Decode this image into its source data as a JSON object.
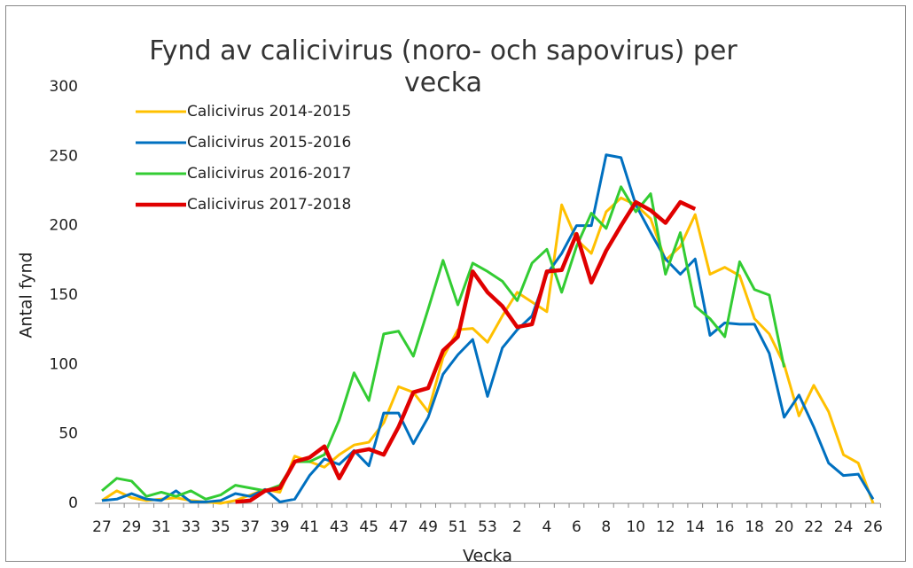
{
  "chart_data": {
    "type": "line",
    "title": "Fynd av calicivirus (noro- och sapovirus) per vecka",
    "x_label": "Vecka",
    "y_label": "Antal fynd",
    "categories": [
      "27",
      null,
      "29",
      null,
      "31",
      null,
      "33",
      null,
      "35",
      null,
      "37",
      null,
      "39",
      null,
      "41",
      null,
      "43",
      null,
      "45",
      null,
      "47",
      null,
      "49",
      null,
      "51",
      null,
      "53",
      null,
      "2",
      null,
      "4",
      null,
      "6",
      null,
      "8",
      null,
      "10",
      null,
      "12",
      null,
      "14",
      null,
      "16",
      null,
      "18",
      null,
      "20",
      null,
      "22",
      null,
      "24",
      null,
      "26"
    ],
    "ylim": [
      0,
      300
    ],
    "yticks": [
      0,
      50,
      100,
      150,
      200,
      250,
      300
    ],
    "legend": "upper left",
    "series": [
      {
        "name": "Calicivirus 2014-2015",
        "color": "#FFC000",
        "values": [
          2,
          9,
          4,
          2,
          3,
          4,
          2,
          1,
          0,
          2,
          6,
          10,
          8,
          34,
          30,
          26,
          35,
          42,
          44,
          58,
          84,
          80,
          66,
          105,
          125,
          126,
          116,
          135,
          152,
          145,
          138,
          215,
          190,
          180,
          210,
          220,
          215,
          205,
          175,
          185,
          208,
          165,
          170,
          164,
          133,
          122,
          100,
          63,
          85,
          66,
          35,
          29,
          0
        ]
      },
      {
        "name": "Calicivirus 2015-2016",
        "color": "#0070C0",
        "values": [
          2,
          3,
          7,
          3,
          2,
          9,
          1,
          1,
          2,
          7,
          5,
          10,
          1,
          3,
          20,
          32,
          28,
          38,
          27,
          65,
          65,
          43,
          62,
          93,
          107,
          118,
          77,
          112,
          125,
          135,
          165,
          180,
          200,
          200,
          251,
          249,
          215,
          195,
          176,
          165,
          176,
          121,
          130,
          129,
          129,
          108,
          62,
          78,
          55,
          29,
          20,
          21,
          3
        ]
      },
      {
        "name": "Calicivirus 2016-2017",
        "color": "#33CC33",
        "values": [
          9,
          18,
          16,
          5,
          8,
          5,
          9,
          3,
          6,
          13,
          11,
          9,
          13,
          30,
          30,
          35,
          60,
          94,
          74,
          122,
          124,
          106,
          140,
          175,
          143,
          173,
          167,
          160,
          146,
          173,
          183,
          152,
          185,
          209,
          198,
          228,
          210,
          223,
          165,
          195,
          142,
          133,
          120,
          174,
          154,
          150,
          98,
          null,
          null,
          null,
          null,
          null,
          null
        ]
      },
      {
        "name": "Calicivirus 2017-2018",
        "color": "#E00000",
        "values": [
          null,
          null,
          null,
          null,
          null,
          null,
          null,
          null,
          null,
          1,
          2,
          9,
          11,
          30,
          33,
          41,
          18,
          37,
          39,
          35,
          55,
          80,
          83,
          110,
          120,
          167,
          152,
          142,
          127,
          129,
          167,
          168,
          194,
          159,
          182,
          200,
          217,
          211,
          202,
          217,
          212,
          null,
          null,
          null,
          null,
          null,
          null,
          null,
          null,
          null,
          null,
          null,
          null
        ]
      }
    ]
  }
}
